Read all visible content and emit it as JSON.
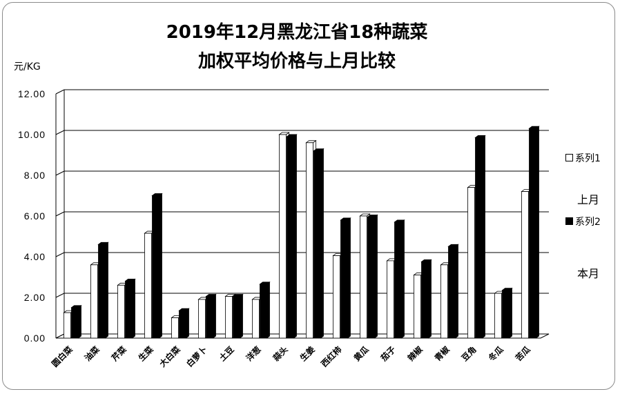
{
  "chart_data": {
    "type": "bar",
    "title": "2019年12月黑龙江省18种蔬菜",
    "subtitle": "加权平均价格与上月比较",
    "ylabel": "元/KG",
    "ylim": [
      0,
      12
    ],
    "yticks": [
      "0.00",
      "2.00",
      "4.00",
      "6.00",
      "8.00",
      "10.00",
      "12.00"
    ],
    "grid": true,
    "legend_position": "right",
    "categories": [
      "圆白菜",
      "油菜",
      "芹菜",
      "生菜",
      "大白菜",
      "白萝卜",
      "土豆",
      "洋葱",
      "蒜头",
      "生姜",
      "西红柿",
      "黄瓜",
      "茄子",
      "辣椒",
      "青椒",
      "豆角",
      "冬瓜",
      "苦瓜"
    ],
    "series": [
      {
        "name": "系列1",
        "note": "上月",
        "color": "#ffffff",
        "values": [
          1.25,
          3.6,
          2.6,
          5.15,
          1.0,
          1.9,
          2.05,
          1.9,
          10.0,
          9.6,
          4.05,
          6.0,
          3.8,
          3.1,
          3.6,
          7.4,
          2.2,
          7.2
        ]
      },
      {
        "name": "系列2",
        "note": "本月",
        "color": "#000000",
        "values": [
          1.5,
          4.6,
          2.8,
          7.0,
          1.35,
          2.05,
          2.05,
          2.65,
          9.9,
          9.2,
          5.8,
          5.95,
          5.7,
          3.75,
          4.5,
          9.85,
          2.35,
          10.3
        ]
      }
    ]
  }
}
